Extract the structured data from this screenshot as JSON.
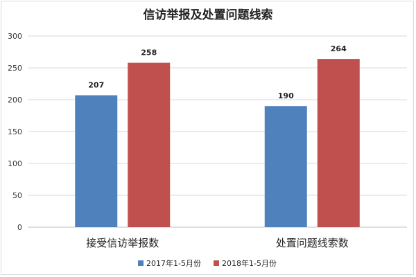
{
  "chart_data": {
    "type": "bar",
    "title": "信访举报及处置问题线索",
    "categories": [
      "接受信访举报数",
      "处置问题线索数"
    ],
    "series": [
      {
        "name": "2017年1-5月份",
        "color": "#4f81bd",
        "values": [
          207,
          190
        ]
      },
      {
        "name": "2018年1-5月份",
        "color": "#c0504d",
        "values": [
          258,
          264
        ]
      }
    ],
    "yticks": [
      0,
      50,
      100,
      150,
      200,
      250,
      300
    ],
    "ylim": [
      0,
      300
    ],
    "grid": true,
    "legend": "bottom"
  }
}
